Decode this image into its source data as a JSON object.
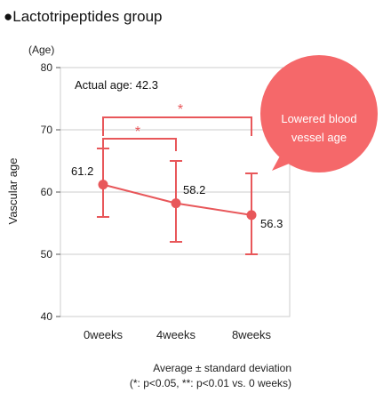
{
  "chart_data": {
    "type": "line",
    "title": "●Lactotripeptides group",
    "ylabel": "Vascular age",
    "yunit": "(Age)",
    "ylim": [
      40,
      80
    ],
    "yticks": [
      40,
      50,
      60,
      70,
      80
    ],
    "grid": true,
    "categories": [
      "0weeks",
      "4weeks",
      "8weeks"
    ],
    "series": [
      {
        "color": "#e8575a",
        "values": [
          61.2,
          58.2,
          56.3
        ],
        "error_upper": [
          67.0,
          65.0,
          63.0
        ],
        "error_lower": [
          56.0,
          52.0,
          50.0
        ],
        "value_labels": [
          "61.2",
          "58.2",
          "56.3"
        ]
      }
    ],
    "annotation_text": "Actual age: 42.3",
    "significance": [
      {
        "from": "0weeks",
        "to": "4weeks",
        "mark": "*"
      },
      {
        "from": "0weeks",
        "to": "8weeks",
        "mark": "*"
      }
    ],
    "callout": {
      "lines": [
        "Lowered blood",
        "vessel age"
      ],
      "color": "#f5686a"
    },
    "footnote": [
      "Average ± standard deviation",
      "(*: p<0.05, **: p<0.01 vs. 0 weeks)"
    ]
  }
}
